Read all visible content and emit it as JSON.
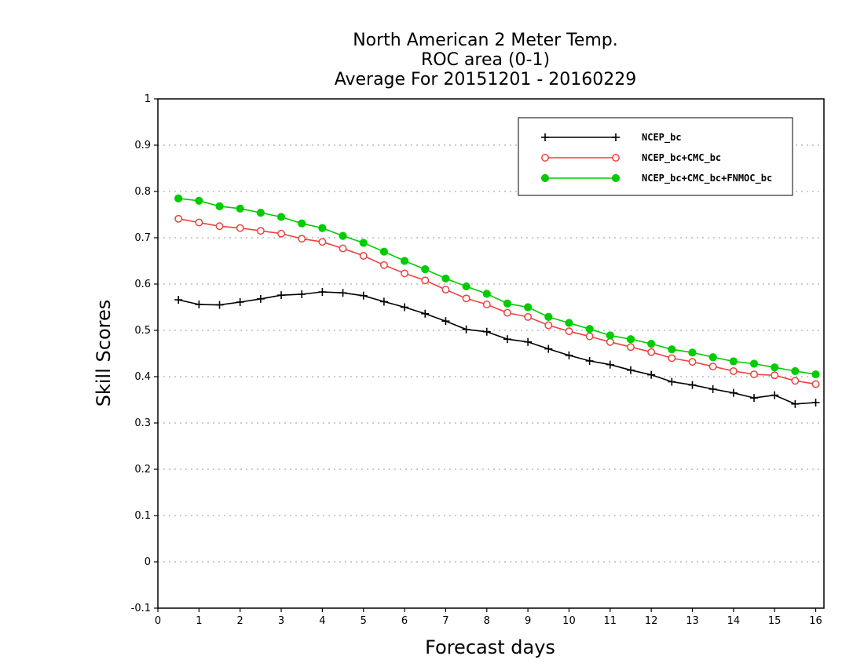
{
  "chart_data": {
    "type": "line",
    "title": [
      "North American 2 Meter Temp.",
      "ROC area (0-1)",
      "Average For 20151201 - 20160229"
    ],
    "xlabel": "Forecast days",
    "ylabel": "Skill Scores",
    "xlim": [
      0,
      16.2
    ],
    "ylim": [
      -0.1,
      1
    ],
    "xticks": [
      0,
      1,
      2,
      3,
      4,
      5,
      6,
      7,
      8,
      9,
      10,
      11,
      12,
      13,
      14,
      15,
      16
    ],
    "yticks": [
      -0.1,
      0,
      0.1,
      0.2,
      0.3,
      0.4,
      0.5,
      0.6,
      0.7,
      0.8,
      0.9,
      1
    ],
    "ytick_labels": [
      "-0.1",
      "0",
      "0.1",
      "0.2",
      "0.3",
      "0.4",
      "0.5",
      "0.6",
      "0.7",
      "0.8",
      "0.9",
      "1"
    ],
    "grid": "horizontal dotted",
    "legend_position": "top-right",
    "x": [
      0.5,
      1,
      1.5,
      2,
      2.5,
      3,
      3.5,
      4,
      4.5,
      5,
      5.5,
      6,
      6.5,
      7,
      7.5,
      8,
      8.5,
      9,
      9.5,
      10,
      10.5,
      11,
      11.5,
      12,
      12.5,
      13,
      13.5,
      14,
      14.5,
      15,
      15.5,
      16
    ],
    "series": [
      {
        "name": "NCEP_bc",
        "color": "#000000",
        "marker": "plus",
        "values": [
          0.566,
          0.556,
          0.555,
          0.561,
          0.568,
          0.576,
          0.578,
          0.583,
          0.581,
          0.575,
          0.562,
          0.55,
          0.536,
          0.52,
          0.502,
          0.497,
          0.481,
          0.475,
          0.46,
          0.446,
          0.434,
          0.426,
          0.414,
          0.404,
          0.389,
          0.382,
          0.373,
          0.365,
          0.354,
          0.36,
          0.341,
          0.344
        ]
      },
      {
        "name": "NCEP_bc+CMC_bc",
        "color": "#f04040",
        "marker": "open-circle",
        "values": [
          0.741,
          0.733,
          0.725,
          0.721,
          0.715,
          0.709,
          0.698,
          0.691,
          0.677,
          0.661,
          0.641,
          0.623,
          0.608,
          0.588,
          0.569,
          0.556,
          0.538,
          0.529,
          0.511,
          0.498,
          0.487,
          0.475,
          0.464,
          0.453,
          0.44,
          0.432,
          0.422,
          0.412,
          0.405,
          0.403,
          0.391,
          0.384
        ]
      },
      {
        "name": "NCEP_bc+CMC_bc+FNMOC_bc",
        "color": "#00cc00",
        "marker": "filled-circle",
        "values": [
          0.785,
          0.78,
          0.768,
          0.763,
          0.754,
          0.745,
          0.731,
          0.721,
          0.704,
          0.689,
          0.67,
          0.65,
          0.632,
          0.612,
          0.595,
          0.579,
          0.558,
          0.55,
          0.529,
          0.516,
          0.503,
          0.489,
          0.481,
          0.471,
          0.459,
          0.452,
          0.442,
          0.433,
          0.428,
          0.42,
          0.412,
          0.405
        ]
      }
    ]
  }
}
